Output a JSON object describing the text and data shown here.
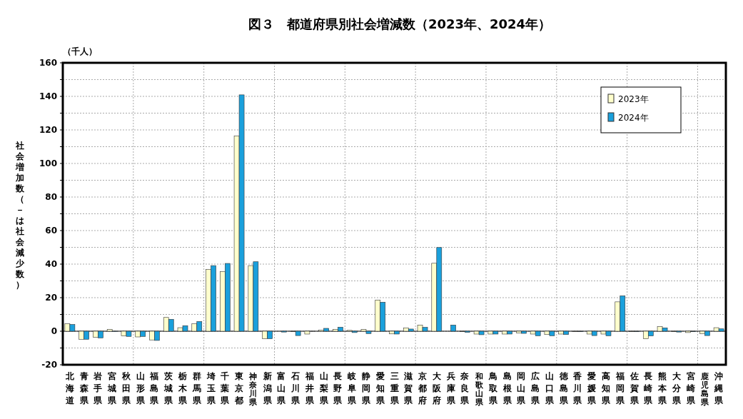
{
  "chart_data": {
    "type": "bar",
    "title": "図３　都道府県別社会増減数（2023年、2024年）",
    "ylabel": "社会増加数（－は社会減少数）",
    "annotations": [
      "（千人）"
    ],
    "categories": [
      "北海道",
      "青森県",
      "岩手県",
      "宮城県",
      "秋田県",
      "山形県",
      "福島県",
      "茨城県",
      "栃木県",
      "群馬県",
      "埼玉県",
      "千葉県",
      "東京都",
      "神奈川県",
      "新潟県",
      "富山県",
      "石川県",
      "福井県",
      "山梨県",
      "長野県",
      "岐阜県",
      "静岡県",
      "愛知県",
      "三重県",
      "滋賀県",
      "京都府",
      "大阪府",
      "兵庫県",
      "奈良県",
      "和歌山県",
      "鳥取県",
      "島根県",
      "岡山県",
      "広島県",
      "山口県",
      "徳島県",
      "香川県",
      "愛媛県",
      "高知県",
      "福岡県",
      "佐賀県",
      "長崎県",
      "熊本県",
      "大分県",
      "宮崎県",
      "鹿児島県",
      "沖縄県"
    ],
    "series": [
      {
        "name": "2023年",
        "color": "#ffffcc",
        "values": [
          4.4,
          -4.8,
          -3.7,
          1.1,
          -2.8,
          -3.4,
          -5.2,
          8.2,
          2.1,
          4.4,
          36.9,
          35.6,
          116.3,
          39.1,
          -4.5,
          null,
          -0.3,
          -1.7,
          0.6,
          1.1,
          0.5,
          1.0,
          18.6,
          -1.6,
          2.0,
          3.7,
          40.5,
          null,
          -0.3,
          -1.7,
          -1.7,
          -1.7,
          -1.0,
          -1.7,
          -2.0,
          -1.7,
          -0.3,
          -1.7,
          -1.7,
          17.5,
          -0.3,
          -4.5,
          2.7,
          -0.3,
          -0.8,
          -1.4,
          2.1
        ]
      },
      {
        "name": "2024年",
        "color": "#1aa0dc",
        "values": [
          4.0,
          -4.8,
          -4.0,
          -0.1,
          -3.1,
          -3.1,
          -5.5,
          7.1,
          3.3,
          5.8,
          39.1,
          40.4,
          140.9,
          41.4,
          -4.5,
          -0.5,
          -2.6,
          0,
          1.7,
          2.4,
          -0.8,
          -1.4,
          17.3,
          -1.7,
          1.3,
          2.3,
          49.9,
          3.7,
          -0.7,
          -2.1,
          -1.7,
          -1.7,
          -1.3,
          -2.7,
          -2.7,
          -2.0,
          -0.3,
          -2.6,
          -2.7,
          21.1,
          -0.3,
          -2.8,
          2.0,
          -0.5,
          -0.3,
          -2.6,
          1.4
        ]
      }
    ],
    "ylim": [
      -20,
      160
    ],
    "yticks": [
      -20,
      {
        "value": -10,
        "label": null
      },
      0,
      {
        "value": 10,
        "label": null
      },
      20,
      {
        "value": 30,
        "label": null
      },
      40,
      {
        "value": 50,
        "label": null
      },
      60,
      {
        "value": 70,
        "label": null
      },
      80,
      {
        "value": 90,
        "label": null
      },
      100,
      {
        "value": 110,
        "label": null
      },
      120,
      {
        "value": 130,
        "label": null
      },
      140,
      {
        "value": 150,
        "label": null
      },
      160
    ],
    "grid": true,
    "legend": "top right"
  }
}
